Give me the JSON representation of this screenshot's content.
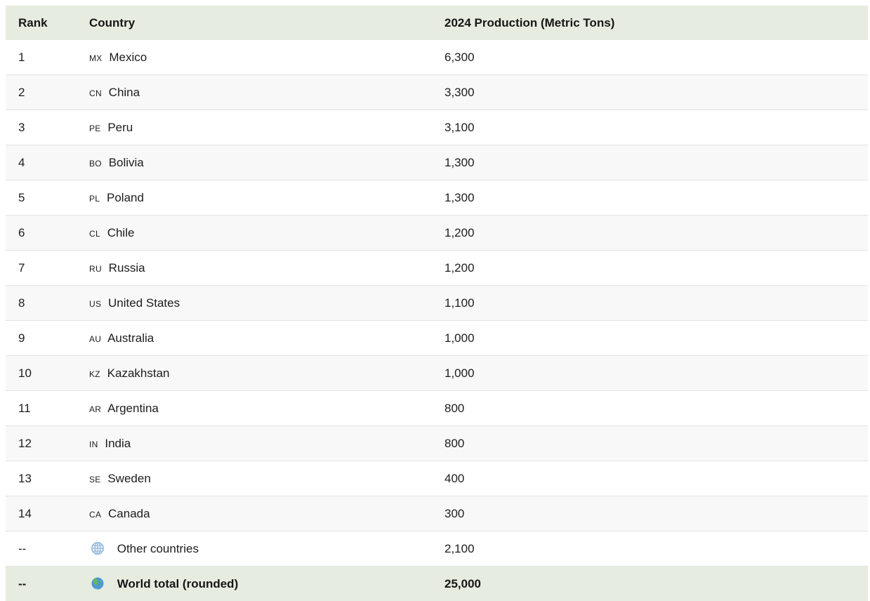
{
  "table": {
    "columns": [
      "Rank",
      "Country",
      "2024 Production (Metric Tons)"
    ],
    "rows": [
      {
        "rank": "1",
        "code": "MX",
        "country": "Mexico",
        "value": "6,300"
      },
      {
        "rank": "2",
        "code": "CN",
        "country": "China",
        "value": "3,300"
      },
      {
        "rank": "3",
        "code": "PE",
        "country": "Peru",
        "value": "3,100"
      },
      {
        "rank": "4",
        "code": "BO",
        "country": "Bolivia",
        "value": "1,300"
      },
      {
        "rank": "5",
        "code": "PL",
        "country": "Poland",
        "value": "1,300"
      },
      {
        "rank": "6",
        "code": "CL",
        "country": "Chile",
        "value": "1,200"
      },
      {
        "rank": "7",
        "code": "RU",
        "country": "Russia",
        "value": "1,200"
      },
      {
        "rank": "8",
        "code": "US",
        "country": "United States",
        "value": "1,100"
      },
      {
        "rank": "9",
        "code": "AU",
        "country": "Australia",
        "value": "1,000"
      },
      {
        "rank": "10",
        "code": "KZ",
        "country": "Kazakhstan",
        "value": "1,000"
      },
      {
        "rank": "11",
        "code": "AR",
        "country": "Argentina",
        "value": "800"
      },
      {
        "rank": "12",
        "code": "IN",
        "country": "India",
        "value": "800"
      },
      {
        "rank": "13",
        "code": "SE",
        "country": "Sweden",
        "value": "400"
      },
      {
        "rank": "14",
        "code": "CA",
        "country": "Canada",
        "value": "300"
      },
      {
        "rank": "--",
        "icon": "globe-with-meridians-icon",
        "country": "Other countries",
        "value": "2,100"
      },
      {
        "rank": "--",
        "icon": "earth-globe-icon",
        "country": "World total (rounded)",
        "value": "25,000",
        "is_total": true
      }
    ]
  },
  "colors": {
    "header_background": "#e6ecdf",
    "total_row_background": "#e6ecdf",
    "zebra_stripe": "#f8f8f8",
    "row_border": "#e3e3e3",
    "text": "#1d1d1d",
    "meridian_globe_blue": "#8fb7da",
    "earth_ocean_blue": "#4d96d9",
    "earth_land_green": "#63b663"
  },
  "chart_data": {
    "type": "table",
    "title": "2024 Production (Metric Tons)",
    "columns": [
      "Rank",
      "Country",
      "2024 Production (Metric Tons)"
    ],
    "categories": [
      "Mexico",
      "China",
      "Peru",
      "Bolivia",
      "Poland",
      "Chile",
      "Russia",
      "United States",
      "Australia",
      "Kazakhstan",
      "Argentina",
      "India",
      "Sweden",
      "Canada",
      "Other countries",
      "World total (rounded)"
    ],
    "values": [
      6300,
      3300,
      3100,
      1300,
      1300,
      1200,
      1200,
      1100,
      1000,
      1000,
      800,
      800,
      400,
      300,
      2100,
      25000
    ],
    "ranks": [
      "1",
      "2",
      "3",
      "4",
      "5",
      "6",
      "7",
      "8",
      "9",
      "10",
      "11",
      "12",
      "13",
      "14",
      "--",
      "--"
    ]
  }
}
